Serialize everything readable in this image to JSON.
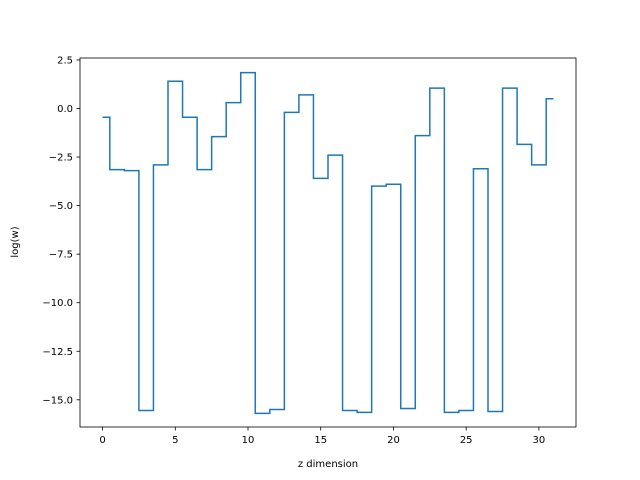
{
  "chart_data": {
    "type": "line",
    "drawstyle": "steps-mid",
    "title": "",
    "xlabel": "z dimension",
    "ylabel": "log(w)",
    "xlim": [
      -1.55,
      32.55
    ],
    "ylim": [
      -16.4,
      2.6
    ],
    "x_ticks": [
      0,
      5,
      10,
      15,
      20,
      25,
      30
    ],
    "x_tick_labels": [
      "0",
      "5",
      "10",
      "15",
      "20",
      "25",
      "30"
    ],
    "y_ticks": [
      2.5,
      0.0,
      -2.5,
      -5.0,
      -7.5,
      -10.0,
      -12.5,
      -15.0
    ],
    "y_tick_labels": [
      "2.5",
      "0.0",
      "−2.5",
      "−5.0",
      "−7.5",
      "−10.0",
      "−12.5",
      "−15.0"
    ],
    "grid": false,
    "legend": "none",
    "series": [
      {
        "color": "#1f77b4",
        "x": [
          0,
          1,
          2,
          3,
          4,
          5,
          6,
          7,
          8,
          9,
          10,
          11,
          12,
          13,
          14,
          15,
          16,
          17,
          18,
          19,
          20,
          21,
          22,
          23,
          24,
          25,
          26,
          27,
          28,
          29,
          30,
          31
        ],
        "values": [
          -0.45,
          -3.15,
          -3.2,
          -15.55,
          -2.9,
          1.4,
          -0.45,
          -3.15,
          -1.45,
          0.3,
          1.85,
          -15.7,
          -15.5,
          -0.2,
          0.7,
          -3.6,
          -2.4,
          -15.55,
          -15.65,
          -4.0,
          -3.9,
          -15.45,
          -1.4,
          1.05,
          -15.65,
          -15.55,
          -3.1,
          -15.6,
          1.05,
          -1.85,
          -2.9,
          0.5
        ]
      }
    ]
  }
}
